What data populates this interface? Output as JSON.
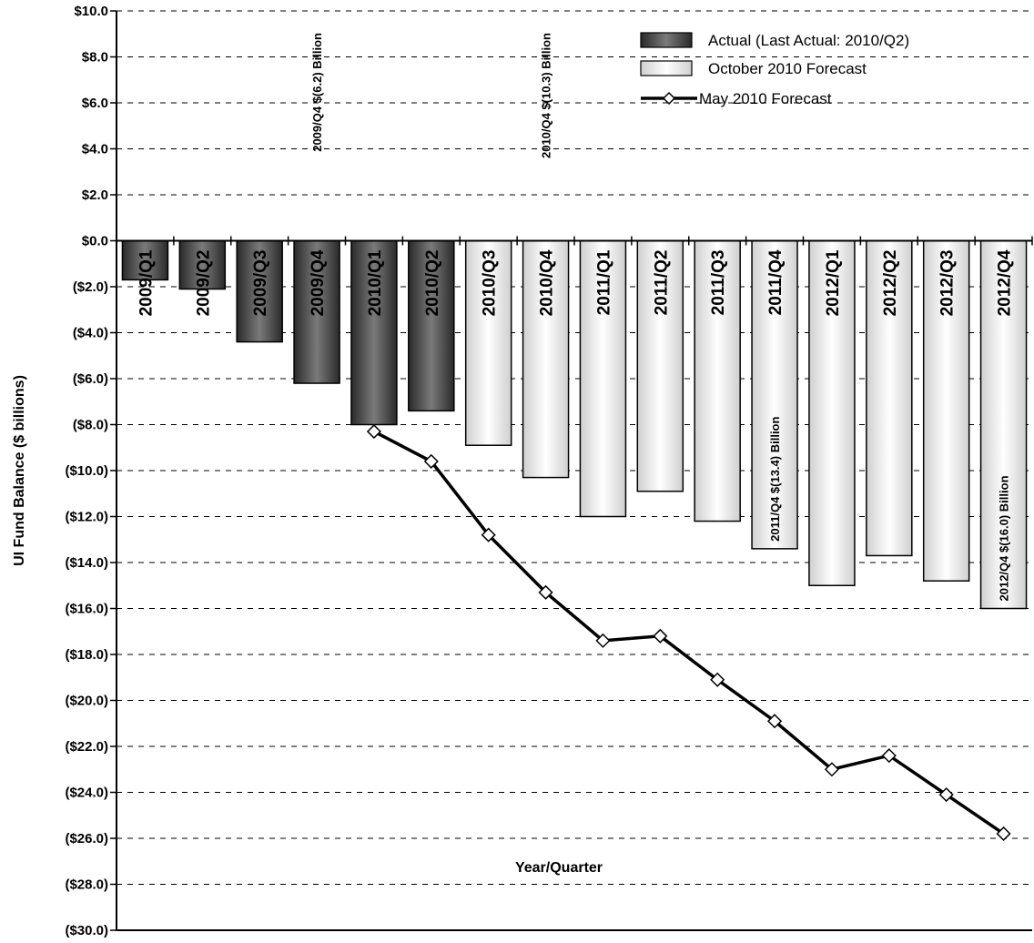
{
  "chart_data": {
    "type": "bar",
    "ylabel": "UI Fund Balance ($ billions)",
    "xlabel": "Year/Quarter",
    "ylim": [
      -30,
      10
    ],
    "yticks": [
      10,
      8,
      6,
      4,
      2,
      0,
      -2,
      -4,
      -6,
      -8,
      -10,
      -12,
      -14,
      -16,
      -18,
      -20,
      -22,
      -24,
      -26,
      -28,
      -30
    ],
    "ytick_labels": [
      "$10.0",
      "$8.0",
      "$6.0",
      "$4.0",
      "$2.0",
      "$0.0",
      "($2.0)",
      "($4.0)",
      "($6.0)",
      "($8.0)",
      "($10.0)",
      "($12.0)",
      "($14.0)",
      "($16.0)",
      "($18.0)",
      "($20.0)",
      "($22.0)",
      "($24.0)",
      "($26.0)",
      "($28.0)",
      "($30.0)"
    ],
    "grid": true,
    "categories": [
      "2009/Q1",
      "2009/Q2",
      "2009/Q3",
      "2009/Q4",
      "2010/Q1",
      "2010/Q2",
      "2010/Q3",
      "2010/Q4",
      "2011/Q1",
      "2011/Q2",
      "2011/Q3",
      "2011/Q4",
      "2012/Q1",
      "2012/Q2",
      "2012/Q3",
      "2012/Q4"
    ],
    "series": [
      {
        "name": "Actual (Last Actual: 2010/Q2)",
        "type": "bar",
        "color": "#555555",
        "values": [
          -1.7,
          -2.1,
          -4.4,
          -6.2,
          -8.0,
          -7.4,
          null,
          null,
          null,
          null,
          null,
          null,
          null,
          null,
          null,
          null
        ]
      },
      {
        "name": "October 2010 Forecast",
        "type": "bar",
        "color": "#ececec",
        "values": [
          null,
          null,
          null,
          null,
          null,
          null,
          -8.9,
          -10.3,
          -12.0,
          -10.9,
          -12.2,
          -13.4,
          -15.0,
          -13.7,
          -14.8,
          -16.0
        ]
      },
      {
        "name": "May 2010 Forecast",
        "type": "line",
        "color": "#000000",
        "values": [
          null,
          null,
          null,
          null,
          -8.3,
          -9.6,
          -12.8,
          -15.3,
          -17.4,
          -17.2,
          -19.1,
          -20.9,
          -23.0,
          -22.4,
          -24.1,
          -25.8
        ]
      }
    ],
    "annotations": [
      {
        "category": "2009/Q4",
        "text": "2009/Q4 $(6.2) Billion",
        "position": "above-axis"
      },
      {
        "category": "2010/Q4",
        "text": "2010/Q4 $(10.3) Billion",
        "position": "above-axis"
      },
      {
        "category": "2011/Q4",
        "text": "2011/Q4 $(13.4) Billion",
        "position": "inside-bar"
      },
      {
        "category": "2012/Q4",
        "text": "2012/Q4 $(16.0) Billion",
        "position": "inside-bar"
      }
    ],
    "legend": {
      "position": "top-right"
    }
  }
}
